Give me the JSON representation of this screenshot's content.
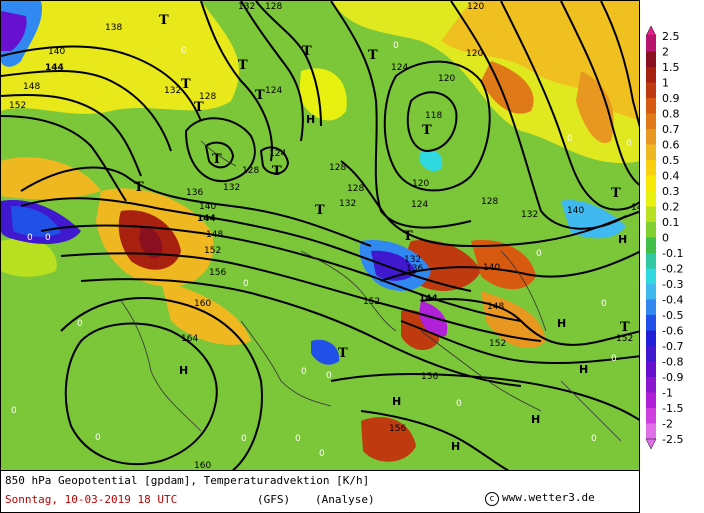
{
  "footer": {
    "title": "850 hPa Geopotential [gpdam], Temperaturadvektion [K/h]",
    "date": "Sonntag, 10-03-2019  18 UTC",
    "model": "(GFS)",
    "run": "(Analyse)",
    "credit": "www.wetter3.de",
    "copyright_symbol": "c"
  },
  "legend": {
    "labels": [
      "2.5",
      "2",
      "1.5",
      "1",
      "0.9",
      "0.8",
      "0.7",
      "0.6",
      "0.5",
      "0.4",
      "0.3",
      "0.2",
      "0.1",
      "0",
      "-0.1",
      "-0.2",
      "-0.3",
      "-0.4",
      "-0.5",
      "-0.6",
      "-0.7",
      "-0.8",
      "-0.9",
      "-1",
      "-1.5",
      "-2",
      "-2.5"
    ],
    "colors": [
      "#e8208e",
      "#b8166e",
      "#8a1020",
      "#a82010",
      "#c03a10",
      "#d85a10",
      "#e07a18",
      "#e89820",
      "#f0b820",
      "#f8d010",
      "#f8e808",
      "#e8f010",
      "#b8e020",
      "#80d030",
      "#40c048",
      "#30c8a0",
      "#30d8e0",
      "#40b8f0",
      "#3088f0",
      "#2050e8",
      "#2020d8",
      "#4018d0",
      "#6810d0",
      "#8a18d0",
      "#b020d8",
      "#d040e0",
      "#e070e8"
    ]
  },
  "map": {
    "high_label": "H",
    "low_label": "T",
    "highs": [
      "H",
      "H",
      "H",
      "H",
      "H",
      "H",
      "H",
      "H"
    ],
    "contours": [
      "136",
      "140",
      "144",
      "148",
      "152",
      "156",
      "160",
      "164",
      "132",
      "128",
      "124",
      "120",
      "118"
    ],
    "isolines": {
      "c140a": "140",
      "c144a": "144",
      "c148a": "148",
      "c152a": "152",
      "c138": "138",
      "c132a": "132",
      "c128a": "128",
      "c132b": "132",
      "c128b": "128",
      "c124a": "124",
      "c124b": "124",
      "c120a": "120",
      "c120b": "120",
      "c118": "118",
      "c120c": "120",
      "c124c": "124",
      "c128c": "128",
      "c128d": "128",
      "c132c": "132",
      "c136a": "136",
      "c140b": "140",
      "c144b": "144",
      "c148b": "148",
      "c152b": "152",
      "c156a": "156",
      "c160a": "160",
      "c164": "164",
      "c132d": "132",
      "c136b": "136",
      "c140c": "140",
      "c144c": "144",
      "c148c": "148",
      "c152c": "152",
      "c152d": "152",
      "c156b": "156",
      "c156c": "156",
      "c160b": "160",
      "c152e": "152",
      "c132e": "132",
      "c140d": "140",
      "c14": "14",
      "c128e": "128",
      "c124d": "124",
      "c132f": "132",
      "c128f": "128",
      "c120d": "120"
    },
    "zero_label": "0"
  }
}
